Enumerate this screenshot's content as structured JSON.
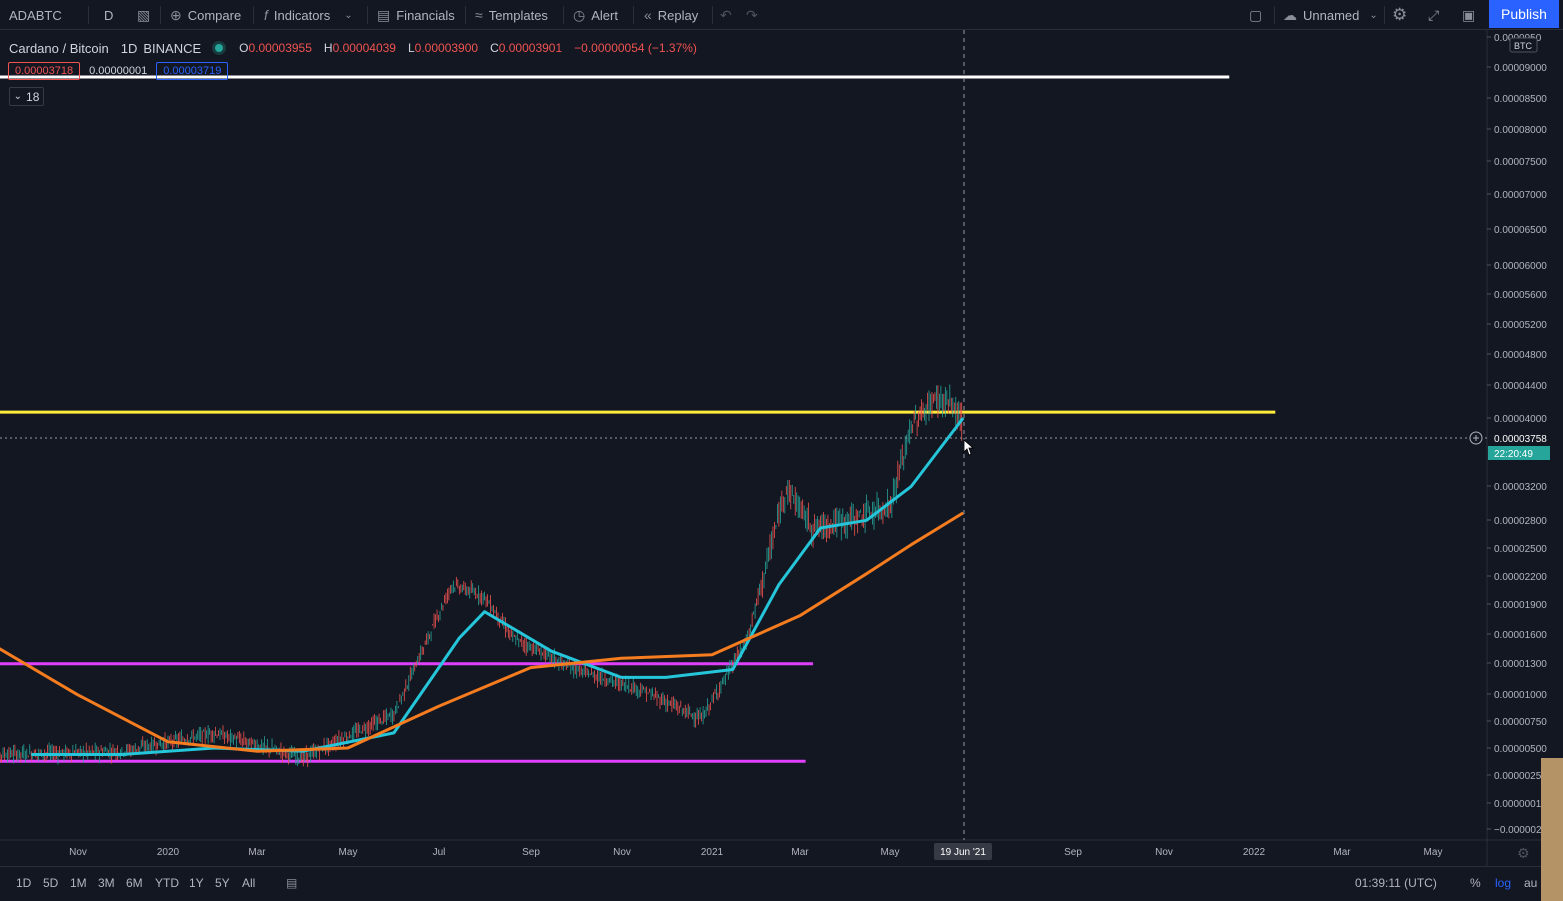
{
  "toolbar": {
    "symbol": "ADABTC",
    "interval": "D",
    "compare": "Compare",
    "indicators": "Indicators",
    "financials": "Financials",
    "templates": "Templates",
    "alert": "Alert",
    "replay": "Replay",
    "layout_name": "Unnamed",
    "publish": "Publish"
  },
  "legend": {
    "title": "Cardano / Bitcoin",
    "interval": "1D",
    "exchange": "BINANCE",
    "o_label": "O",
    "o_value": "0.00003955",
    "h_label": "H",
    "h_value": "0.00004039",
    "l_label": "L",
    "l_value": "0.00003900",
    "c_label": "C",
    "c_value": "0.00003901",
    "change": "−0.00000054 (−1.37%)"
  },
  "order_badges": {
    "sell": "0.00003718",
    "spread": "0.00000001",
    "buy": "0.00003719"
  },
  "collapse_badge": "18",
  "bottom": {
    "ranges": [
      "1D",
      "5D",
      "1M",
      "3M",
      "6M",
      "YTD",
      "1Y",
      "5Y",
      "All"
    ],
    "clock": "01:39:11 (UTC)",
    "percent": "%",
    "log": "log",
    "auto": "au"
  },
  "chart_data": {
    "type": "candlestick",
    "symbol": "ADABTC",
    "timeframe": "1D",
    "scale": "log",
    "y_axis_currency": "BTC",
    "current_price": "0.00003758",
    "countdown": "22:20:49",
    "crosshair_date": "19 Jun '21",
    "price_ticks": [
      "0.0000950",
      "0.0000900",
      "0.0000850",
      "0.0000800",
      "0.0000750",
      "0.0000700",
      "0.0000650",
      "0.0000600",
      "0.0000560",
      "0.0000520",
      "0.0000480",
      "0.0000440",
      "0.0000400",
      "0.0000320",
      "0.0000280",
      "0.0000250",
      "0.0000220",
      "0.0000190",
      "0.0000160",
      "0.0000130",
      "0.0000100",
      "0.0000075",
      "0.0000050",
      "0.0000025",
      "0.0000001",
      "−0.000002"
    ],
    "price_tick_labels": [
      "0.0000950",
      "0.00009000",
      "0.00008500",
      "0.00008000",
      "0.00007500",
      "0.00007000",
      "0.00006500",
      "0.00006000",
      "0.00005600",
      "0.00005200",
      "0.00004800",
      "0.00004400",
      "0.00004000",
      "0.00003200",
      "0.00002800",
      "0.00002500",
      "0.00002200",
      "0.00001900",
      "0.00001600",
      "0.00001300",
      "0.00001000",
      "0.00000750",
      "0.00000500",
      "0.0000025",
      "0.0000001",
      "−0.000002"
    ],
    "time_ticks": [
      "Nov",
      "2020",
      "Mar",
      "May",
      "Jul",
      "Sep",
      "Nov",
      "2021",
      "Mar",
      "May",
      "19 Jun '21",
      "Sep",
      "Nov",
      "2022",
      "Mar",
      "May"
    ],
    "series": [
      {
        "name": "ma_fast",
        "color": "#26c6da",
        "dates": [
          "2019-10-01",
          "2019-12-01",
          "2020-02-01",
          "2020-04-01",
          "2020-06-01",
          "2020-07-15",
          "2020-08-01",
          "2020-09-15",
          "2020-11-01",
          "2020-12-01",
          "2021-01-15",
          "2021-02-15",
          "2021-03-15",
          "2021-04-15",
          "2021-05-15",
          "2021-06-19"
        ],
        "values": [
          4.8e-06,
          4.8e-06,
          5e-06,
          4.9e-06,
          5.5e-06,
          1e-05,
          1.18e-05,
          9.2e-06,
          7.8e-06,
          7.8e-06,
          8.2e-06,
          1.4e-05,
          2e-05,
          2.1e-05,
          2.6e-05,
          4e-05
        ]
      },
      {
        "name": "ma_slow",
        "color": "#f57c1f",
        "dates": [
          "2019-09-01",
          "2019-11-01",
          "2020-01-01",
          "2020-03-01",
          "2020-05-01",
          "2020-07-01",
          "2020-09-01",
          "2020-11-01",
          "2021-01-01",
          "2021-03-01",
          "2021-04-15",
          "2021-05-15",
          "2021-06-19"
        ],
        "values": [
          9.8e-06,
          7e-06,
          5.2e-06,
          4.9e-06,
          5e-06,
          6.5e-06,
          8.3e-06,
          8.8e-06,
          9e-06,
          1.15e-05,
          1.5e-05,
          1.8e-05,
          2.2e-05
        ]
      }
    ],
    "horizontal_lines": [
      {
        "name": "top-white-line",
        "price": 8.9e-05,
        "color": "#ffffff",
        "end_date": "2021-12-15"
      },
      {
        "name": "yellow-resistance-line",
        "price": 4.15e-05,
        "color": "#ffeb3b",
        "end_date": "2022-01-15"
      },
      {
        "name": "magenta-upper-line",
        "price": 8.5e-06,
        "color": "#e040fb",
        "end_date": "2021-03-10"
      },
      {
        "name": "magenta-lower-line",
        "price": 4.6e-06,
        "color": "#e040fb",
        "end_date": "2021-03-05"
      }
    ],
    "price_path": {
      "dates": [
        "2019-09-01",
        "2019-12-01",
        "2020-02-01",
        "2020-04-01",
        "2020-06-01",
        "2020-07-10",
        "2020-08-01",
        "2020-08-20",
        "2020-10-01",
        "2020-11-15",
        "2020-12-25",
        "2021-01-25",
        "2021-02-20",
        "2021-03-10",
        "2021-04-10",
        "2021-05-01",
        "2021-05-15",
        "2021-06-01",
        "2021-06-10",
        "2021-06-19"
      ],
      "values": [
        4.8e-06,
        4.9e-06,
        5.5e-06,
        4.7e-06,
        6.2e-06,
        1.4e-05,
        1.3e-05,
        1e-05,
        8.2e-06,
        7.2e-06,
        6e-06,
        1e-05,
        2.6e-05,
        2e-05,
        2.15e-05,
        2.3e-05,
        3.8e-05,
        4.55e-05,
        4.4e-05,
        3.9e-05
      ]
    }
  }
}
